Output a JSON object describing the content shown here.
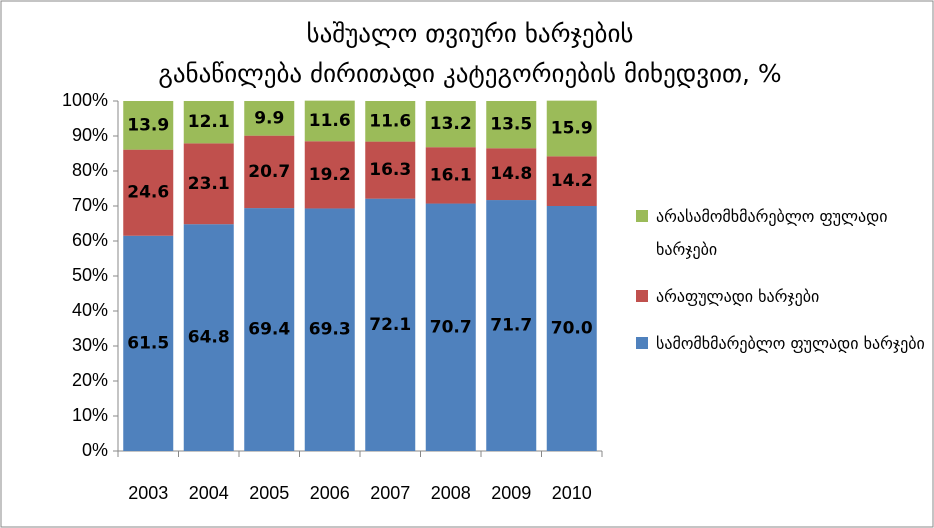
{
  "chart_data": {
    "type": "stacked_bar",
    "title": "საშუალო თვიური ხარჯების განაწილება ძირითადი კატეგორიების მიხედვით, %",
    "categories": [
      "2003",
      "2004",
      "2005",
      "2006",
      "2007",
      "2008",
      "2009",
      "2010"
    ],
    "series": [
      {
        "name": "სამომხმარებლო ფულადი ხარჯები",
        "color": "#4f81bd",
        "values": [
          61.5,
          64.8,
          69.4,
          69.3,
          72.1,
          70.7,
          71.7,
          70
        ],
        "value_labels": [
          "61.5",
          "64.8",
          "69.4",
          "69.3",
          "72.1",
          "70.7",
          "71.7",
          "70.0"
        ]
      },
      {
        "name": "არაფულადი ხარჯები",
        "color": "#c0504d",
        "values": [
          24.6,
          23.1,
          20.7,
          19.2,
          16.3,
          16.1,
          14.8,
          14.2
        ]
      },
      {
        "name": "არასამომხმარებლო ფულადი ხარჯები",
        "color": "#9bbb59",
        "values": [
          13.9,
          12.1,
          9.9,
          11.6,
          11.6,
          13.2,
          13.5,
          15.9
        ]
      }
    ],
    "ylim": [
      0,
      100
    ],
    "yticks": [
      {
        "value": 0,
        "label": "0%"
      },
      {
        "value": 10,
        "label": "10%"
      },
      {
        "value": 20,
        "label": "20%"
      },
      {
        "value": 30,
        "label": "30%"
      },
      {
        "value": 40,
        "label": "40%"
      },
      {
        "value": 50,
        "label": "50%"
      },
      {
        "value": 60,
        "label": "60%"
      },
      {
        "value": 70,
        "label": "70%"
      },
      {
        "value": 80,
        "label": "80%"
      },
      {
        "value": 90,
        "label": "90%"
      },
      {
        "value": 100,
        "label": "100%"
      }
    ],
    "legend": "right"
  }
}
